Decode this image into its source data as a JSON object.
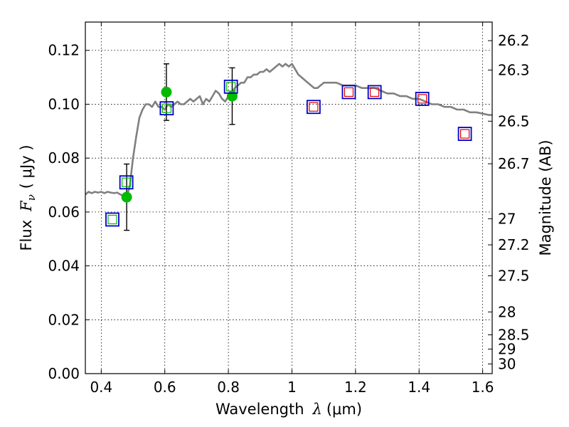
{
  "chart_data": {
    "type": "scatter",
    "xlabel": "Wavelength",
    "xlabel_symbol": "λ",
    "xlabel_unit": "(μm)",
    "ylabel": "Flux",
    "ylabel_symbol": "F",
    "ylabel_subscript": "ν",
    "ylabel_unit": "( μJy )",
    "y2label": "Magnitude (AB)",
    "xlim": [
      0.35,
      1.63
    ],
    "ylim": [
      0.0,
      0.1305
    ],
    "grid": true,
    "x_ticks": [
      {
        "value": 0.4,
        "label": "0.4"
      },
      {
        "value": 0.6,
        "label": "0.6"
      },
      {
        "value": 0.8,
        "label": "0.8"
      },
      {
        "value": 1.0,
        "label": "1"
      },
      {
        "value": 1.2,
        "label": "1.2"
      },
      {
        "value": 1.4,
        "label": "1.4"
      },
      {
        "value": 1.6,
        "label": "1.6"
      }
    ],
    "y_ticks": [
      {
        "value": 0.0,
        "label": "0.00"
      },
      {
        "value": 0.02,
        "label": "0.02"
      },
      {
        "value": 0.04,
        "label": "0.04"
      },
      {
        "value": 0.06,
        "label": "0.06"
      },
      {
        "value": 0.08,
        "label": "0.08"
      },
      {
        "value": 0.1,
        "label": "0.10"
      },
      {
        "value": 0.12,
        "label": "0.12"
      }
    ],
    "mag_ticks": [
      {
        "flux": 0.1236,
        "label": "26.2"
      },
      {
        "flux": 0.1127,
        "label": "26.3"
      },
      {
        "flux": 0.0937,
        "label": "26.5"
      },
      {
        "flux": 0.0779,
        "label": "26.7"
      },
      {
        "flux": 0.0575,
        "label": "27"
      },
      {
        "flux": 0.0478,
        "label": "27.2"
      },
      {
        "flux": 0.0363,
        "label": "27.5"
      },
      {
        "flux": 0.0229,
        "label": "28"
      },
      {
        "flux": 0.0144,
        "label": "28.5"
      },
      {
        "flux": 0.0091,
        "label": "29"
      },
      {
        "flux": 0.0036,
        "label": "30"
      }
    ],
    "series": [
      {
        "style": "line",
        "color": "#808080",
        "x": [
          0.35,
          0.36,
          0.37,
          0.38,
          0.39,
          0.4,
          0.41,
          0.42,
          0.43,
          0.44,
          0.45,
          0.46,
          0.47,
          0.48,
          0.49,
          0.5,
          0.51,
          0.52,
          0.53,
          0.54,
          0.55,
          0.56,
          0.57,
          0.58,
          0.59,
          0.6,
          0.61,
          0.62,
          0.63,
          0.64,
          0.65,
          0.66,
          0.67,
          0.68,
          0.69,
          0.7,
          0.71,
          0.72,
          0.73,
          0.74,
          0.75,
          0.76,
          0.77,
          0.78,
          0.79,
          0.8,
          0.81,
          0.82,
          0.83,
          0.84,
          0.85,
          0.86,
          0.87,
          0.88,
          0.89,
          0.9,
          0.91,
          0.92,
          0.93,
          0.94,
          0.95,
          0.96,
          0.97,
          0.98,
          0.99,
          1.0,
          1.01,
          1.02,
          1.03,
          1.04,
          1.05,
          1.06,
          1.07,
          1.08,
          1.09,
          1.1,
          1.12,
          1.14,
          1.16,
          1.18,
          1.2,
          1.22,
          1.24,
          1.26,
          1.28,
          1.3,
          1.32,
          1.34,
          1.36,
          1.38,
          1.4,
          1.42,
          1.44,
          1.46,
          1.48,
          1.5,
          1.52,
          1.54,
          1.56,
          1.58,
          1.6,
          1.62,
          1.63
        ],
        "y": [
          0.0665,
          0.0675,
          0.067,
          0.0675,
          0.0672,
          0.0675,
          0.067,
          0.0675,
          0.0672,
          0.067,
          0.0672,
          0.0665,
          0.066,
          0.065,
          0.07,
          0.08,
          0.088,
          0.095,
          0.098,
          0.1,
          0.1,
          0.099,
          0.101,
          0.099,
          0.099,
          0.098,
          0.1,
          0.099,
          0.1,
          0.101,
          0.1,
          0.1,
          0.101,
          0.102,
          0.101,
          0.102,
          0.103,
          0.1,
          0.102,
          0.101,
          0.103,
          0.105,
          0.104,
          0.102,
          0.101,
          0.103,
          0.104,
          0.106,
          0.107,
          0.108,
          0.108,
          0.11,
          0.11,
          0.111,
          0.111,
          0.112,
          0.112,
          0.113,
          0.112,
          0.113,
          0.114,
          0.115,
          0.114,
          0.115,
          0.114,
          0.115,
          0.113,
          0.111,
          0.11,
          0.109,
          0.108,
          0.107,
          0.106,
          0.106,
          0.107,
          0.108,
          0.108,
          0.108,
          0.107,
          0.107,
          0.107,
          0.106,
          0.106,
          0.106,
          0.105,
          0.104,
          0.104,
          0.103,
          0.103,
          0.102,
          0.102,
          0.101,
          0.1,
          0.1,
          0.099,
          0.099,
          0.098,
          0.098,
          0.097,
          0.097,
          0.0965,
          0.096,
          0.096
        ]
      },
      {
        "style": "errorbar-points",
        "color": "#00bb00",
        "points": [
          {
            "x": 0.48,
            "y": 0.0655,
            "yerr": 0.0123
          },
          {
            "x": 0.605,
            "y": 0.1045,
            "yerr": 0.0105
          },
          {
            "x": 0.812,
            "y": 0.103,
            "yerr": 0.0105
          }
        ]
      },
      {
        "style": "open-squares",
        "color": "#0000cc",
        "x": [
          0.435,
          0.479,
          0.606,
          0.808,
          1.068,
          1.179,
          1.26,
          1.41,
          1.544
        ],
        "y": [
          0.0572,
          0.071,
          0.0985,
          0.1065,
          0.099,
          0.1045,
          0.1045,
          0.102,
          0.089
        ]
      },
      {
        "style": "inner-squares",
        "colors": [
          "#00bb00",
          "#00bb00",
          "#00bb00",
          "#00bb00",
          "#dd0000",
          "#dd0000",
          "#dd0000",
          "#dd0000",
          "#dd0000"
        ],
        "x": [
          0.435,
          0.479,
          0.606,
          0.808,
          1.068,
          1.179,
          1.26,
          1.41,
          1.544
        ],
        "y": [
          0.0572,
          0.071,
          0.0985,
          0.1065,
          0.099,
          0.1045,
          0.1045,
          0.102,
          0.089
        ]
      }
    ]
  }
}
